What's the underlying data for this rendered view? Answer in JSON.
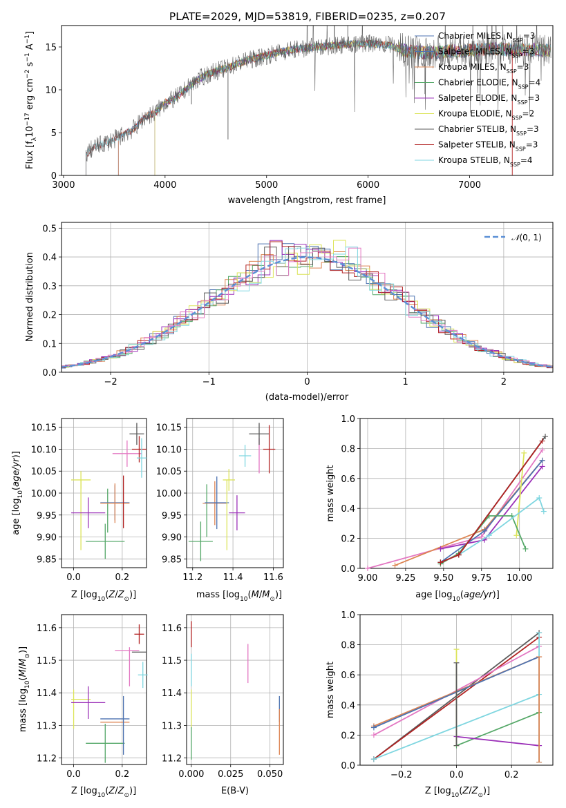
{
  "figure": {
    "title": "PLATE=2029, MJD=53819, FIBERID=0235, z=0.207"
  },
  "colors": {
    "chabrier_miles": "#4c72b0",
    "salpeter_miles": "#4c72b0",
    "kroupa_miles": "#dd8452",
    "chabrier_elodie": "#55a868",
    "salpeter_elodie": "#9b30b8",
    "kroupa_elodie": "#dce45a",
    "chabrier_stelib": "#5a5a5a",
    "salpeter_stelib": "#b22222",
    "kroupa_stelib": "#7fd6e0",
    "pink": "#e377c2",
    "normal": "#5b8fd6",
    "grid": "#b0b0b0"
  },
  "chart_data": [
    {
      "id": "spectrum",
      "type": "line",
      "title": "PLATE=2029, MJD=53819, FIBERID=0235, z=0.207",
      "xlabel": "wavelength [Angstrom, rest frame]",
      "ylabel": "Flux [f_λ 10^-17 erg cm^-2 s^-1 A^-1]",
      "xlim": [
        2980,
        7820
      ],
      "ylim": [
        0,
        17.5
      ],
      "xticks": [
        "3000",
        "4000",
        "5000",
        "6000",
        "7000"
      ],
      "yticks": [
        "0",
        "5",
        "10",
        "15"
      ],
      "grid": false,
      "legend_position": "upper right",
      "legend": [
        "Chabrier MILES, N_SSP=3",
        "Salpeter MILES, N_SSP=3",
        "Kroupa MILES, N_SSP=3",
        "Chabrier ELODIE, N_SSP=4",
        "Salpeter ELODIE, N_SSP=3",
        "Kroupa ELODIE, N_SSP=2",
        "Chabrier STELIB, N_SSP=3",
        "Salpeter STELIB, N_SSP=3",
        "Kroupa STELIB, N_SSP=4"
      ],
      "continuum": {
        "x": [
          3220,
          3300,
          3500,
          3700,
          3800,
          3900,
          4000,
          4100,
          4200,
          4300,
          4400,
          4500,
          4600,
          4700,
          4800,
          5000,
          5200,
          5400,
          5600,
          5800,
          6000,
          6200,
          6400,
          6600,
          6800,
          7000,
          7200,
          7400,
          7800
        ],
        "y": [
          2.5,
          3.3,
          4.2,
          5.5,
          6.8,
          7.3,
          8.5,
          9.0,
          10.0,
          11.0,
          11.7,
          12.2,
          12.5,
          13.0,
          13.4,
          14.0,
          14.6,
          14.9,
          15.1,
          15.3,
          15.4,
          15.2,
          14.5,
          14.3,
          14.5,
          14.6,
          14.8,
          14.7,
          14.6
        ]
      },
      "model_starts": {
        "Chabrier MILES": 3540,
        "Salpeter MILES": 3540,
        "Kroupa MILES": 3540,
        "Kroupa ELODIE": 3900,
        "Salpeter STELIB": 3220,
        "Kroupa STELIB": 3220
      },
      "sharp_features": [
        {
          "x": 4620,
          "y": 4.2
        },
        {
          "x": 4260,
          "y": 8.3
        },
        {
          "x": 5800,
          "y": 17.5
        },
        {
          "x": 6560,
          "y": 9.5
        },
        {
          "x": 6760,
          "y": 17.5
        }
      ]
    },
    {
      "id": "residuals",
      "type": "line",
      "xlabel": "(data-model)/error",
      "ylabel": "Normed distribution",
      "xlim": [
        -2.5,
        2.5
      ],
      "ylim": [
        0,
        0.52
      ],
      "xticks": [
        "−2",
        "−1",
        "0",
        "1",
        "2"
      ],
      "yticks": [
        "0.0",
        "0.1",
        "0.2",
        "0.3",
        "0.4",
        "0.5"
      ],
      "grid": true,
      "legend_position": "upper right",
      "legend": [
        "N(0,1)"
      ],
      "bin_width": 0.1,
      "histogram_center": [
        0.02,
        0.03,
        0.04,
        0.05,
        0.07,
        0.09,
        0.11,
        0.14,
        0.17,
        0.19,
        0.22,
        0.25,
        0.27,
        0.3,
        0.33,
        0.35,
        0.37,
        0.38,
        0.4,
        0.41,
        0.41,
        0.4,
        0.39,
        0.38,
        0.36,
        0.34,
        0.31,
        0.28,
        0.26,
        0.23,
        0.2,
        0.17,
        0.14,
        0.12,
        0.1,
        0.08,
        0.06,
        0.05,
        0.04,
        0.03,
        0.02
      ]
    },
    {
      "id": "age_vs_Z",
      "type": "scatter",
      "xlabel": "Z [log10(Z/Z⊙)]",
      "ylabel": "age [log10(age/yr)]",
      "xlim": [
        -0.05,
        0.3
      ],
      "ylim": [
        9.83,
        10.17
      ],
      "xticks": [
        "0.0",
        "0.2"
      ],
      "yticks": [
        "9.85",
        "9.90",
        "9.95",
        "10.00",
        "10.05",
        "10.10",
        "10.15"
      ],
      "grid": true,
      "points": [
        {
          "x": 0.03,
          "xerr": 0.04,
          "y": 10.03,
          "yerr": 0.02,
          "color": "kroupa_elodie"
        },
        {
          "x": 0.03,
          "xerr": 0.0,
          "y": 9.95,
          "yerr": 0.08,
          "color": "kroupa_elodie"
        },
        {
          "x": 0.06,
          "xerr": 0.07,
          "y": 9.955,
          "yerr": 0.035,
          "color": "salpeter_elodie"
        },
        {
          "x": 0.13,
          "xerr": 0.08,
          "y": 9.89,
          "yerr": 0.04,
          "color": "chabrier_elodie"
        },
        {
          "x": 0.14,
          "xerr": 0.0,
          "y": 9.96,
          "yerr": 0.05,
          "color": "chabrier_elodie"
        },
        {
          "x": 0.17,
          "xerr": 0.06,
          "y": 9.978,
          "yerr": 0.04,
          "color": "chabrier_miles"
        },
        {
          "x": 0.17,
          "xerr": 0.06,
          "y": 9.977,
          "yerr": 0.045,
          "color": "kroupa_miles"
        },
        {
          "x": 0.205,
          "xerr": 0.0,
          "y": 9.98,
          "yerr": 0.06,
          "color": "salpeter_stelib"
        },
        {
          "x": 0.22,
          "xerr": 0.06,
          "y": 10.09,
          "yerr": 0.03,
          "color": "pink"
        },
        {
          "x": 0.27,
          "xerr": 0.03,
          "y": 10.1,
          "yerr": 0.03,
          "color": "salpeter_stelib"
        },
        {
          "x": 0.26,
          "xerr": 0.03,
          "y": 10.135,
          "yerr": 0.025,
          "color": "chabrier_stelib"
        },
        {
          "x": 0.28,
          "xerr": 0.02,
          "y": 10.08,
          "yerr": 0.045,
          "color": "kroupa_stelib"
        }
      ]
    },
    {
      "id": "age_vs_mass",
      "type": "scatter",
      "xlabel": "mass [log10(M/M⊙)]",
      "ylabel": "",
      "xlim": [
        11.17,
        11.65
      ],
      "ylim": [
        9.83,
        10.17
      ],
      "xticks": [
        "11.2",
        "11.4",
        "11.6"
      ],
      "yticks": [
        "9.85",
        "9.90",
        "9.95",
        "10.00",
        "10.05",
        "10.10",
        "10.15"
      ],
      "grid": true,
      "points": [
        {
          "x": 11.24,
          "xerr": 0.06,
          "y": 9.89,
          "yerr": 0.045,
          "color": "chabrier_elodie"
        },
        {
          "x": 11.27,
          "xerr": 0.0,
          "y": 9.96,
          "yerr": 0.06,
          "color": "chabrier_elodie"
        },
        {
          "x": 11.31,
          "xerr": 0.06,
          "y": 9.977,
          "yerr": 0.05,
          "color": "kroupa_miles"
        },
        {
          "x": 11.32,
          "xerr": 0.06,
          "y": 9.978,
          "yerr": 0.06,
          "color": "chabrier_miles"
        },
        {
          "x": 11.37,
          "xerr": 0.0,
          "y": 9.95,
          "yerr": 0.08,
          "color": "kroupa_elodie"
        },
        {
          "x": 11.38,
          "xerr": 0.03,
          "y": 10.03,
          "yerr": 0.025,
          "color": "kroupa_elodie"
        },
        {
          "x": 11.42,
          "xerr": 0.04,
          "y": 9.955,
          "yerr": 0.04,
          "color": "salpeter_elodie"
        },
        {
          "x": 11.46,
          "xerr": 0.03,
          "y": 10.085,
          "yerr": 0.025,
          "color": "kroupa_stelib"
        },
        {
          "x": 11.53,
          "xerr": 0.0,
          "y": 10.085,
          "yerr": 0.04,
          "color": "pink"
        },
        {
          "x": 11.53,
          "xerr": 0.05,
          "y": 10.135,
          "yerr": 0.025,
          "color": "chabrier_stelib"
        },
        {
          "x": 11.58,
          "xerr": 0.03,
          "y": 10.1,
          "yerr": 0.055,
          "color": "salpeter_stelib"
        }
      ]
    },
    {
      "id": "mass_weight_vs_age",
      "type": "line",
      "xlabel": "age [log10(age/yr)]",
      "ylabel": "mass weight",
      "xlim": [
        8.95,
        10.22
      ],
      "ylim": [
        0.0,
        1.0
      ],
      "xticks": [
        "9.00",
        "9.25",
        "9.50",
        "9.75",
        "10.00"
      ],
      "yticks": [
        "0.0",
        "0.2",
        "0.4",
        "0.6",
        "0.8",
        "1.0"
      ],
      "grid": true,
      "series": [
        {
          "color": "pink",
          "x": [
            9.0,
            9.75,
            10.15
          ],
          "y": [
            0.0,
            0.21,
            0.79
          ]
        },
        {
          "color": "kroupa_miles",
          "x": [
            9.18,
            9.77,
            10.15
          ],
          "y": [
            0.02,
            0.26,
            0.72
          ]
        },
        {
          "color": "chabrier_miles",
          "x": [
            9.48,
            9.77,
            10.15
          ],
          "y": [
            0.04,
            0.25,
            0.72
          ]
        },
        {
          "color": "salpeter_elodie",
          "x": [
            9.48,
            9.77,
            10.15
          ],
          "y": [
            0.13,
            0.19,
            0.68
          ]
        },
        {
          "color": "kroupa_elodie",
          "x": [
            9.98,
            10.03
          ],
          "y": [
            0.22,
            0.77
          ]
        },
        {
          "color": "chabrier_elodie",
          "x": [
            9.48,
            9.6,
            9.8,
            9.95,
            10.04
          ],
          "y": [
            0.03,
            0.1,
            0.35,
            0.35,
            0.13
          ]
        },
        {
          "color": "kroupa_stelib",
          "x": [
            9.48,
            9.6,
            9.8,
            10.13,
            10.16
          ],
          "y": [
            0.04,
            0.09,
            0.22,
            0.47,
            0.38
          ]
        },
        {
          "color": "chabrier_stelib",
          "x": [
            9.48,
            9.6,
            10.17
          ],
          "y": [
            0.04,
            0.09,
            0.88
          ]
        },
        {
          "color": "salpeter_stelib",
          "x": [
            9.48,
            9.6,
            10.15
          ],
          "y": [
            0.04,
            0.09,
            0.85
          ]
        }
      ]
    },
    {
      "id": "mass_vs_Z",
      "type": "scatter",
      "xlabel": "Z [log10(Z/Z⊙)]",
      "ylabel": "mass [log10(M/M⊙)]",
      "xlim": [
        -0.05,
        0.3
      ],
      "ylim": [
        11.18,
        11.64
      ],
      "xticks": [
        "0.0",
        "0.2"
      ],
      "yticks": [
        "11.2",
        "11.3",
        "11.4",
        "11.5",
        "11.6"
      ],
      "grid": true,
      "points": [
        {
          "x": 0.03,
          "xerr": 0.04,
          "y": 11.38,
          "yerr": 0.0,
          "color": "kroupa_elodie"
        },
        {
          "x": 0.0,
          "xerr": 0.0,
          "y": 11.35,
          "yerr": 0.06,
          "color": "kroupa_elodie"
        },
        {
          "x": 0.06,
          "xerr": 0.07,
          "y": 11.37,
          "yerr": 0.05,
          "color": "salpeter_elodie"
        },
        {
          "x": 0.13,
          "xerr": 0.08,
          "y": 11.245,
          "yerr": 0.06,
          "color": "chabrier_elodie"
        },
        {
          "x": 0.17,
          "xerr": 0.06,
          "y": 11.32,
          "yerr": 0.0,
          "color": "chabrier_miles"
        },
        {
          "x": 0.17,
          "xerr": 0.06,
          "y": 11.31,
          "yerr": 0.0,
          "color": "kroupa_miles"
        },
        {
          "x": 0.205,
          "xerr": 0.0,
          "y": 11.3,
          "yerr": 0.09,
          "color": "chabrier_miles"
        },
        {
          "x": 0.22,
          "xerr": 0.05,
          "y": 11.53,
          "yerr": 0.0,
          "color": "pink"
        },
        {
          "x": 0.23,
          "xerr": 0.0,
          "y": 11.48,
          "yerr": 0.06,
          "color": "pink"
        },
        {
          "x": 0.27,
          "xerr": 0.02,
          "y": 11.58,
          "yerr": 0.03,
          "color": "salpeter_stelib"
        },
        {
          "x": 0.27,
          "xerr": 0.03,
          "y": 11.525,
          "yerr": 0.0,
          "color": "chabrier_stelib"
        },
        {
          "x": 0.285,
          "xerr": 0.02,
          "y": 11.455,
          "yerr": 0.04,
          "color": "kroupa_stelib"
        }
      ]
    },
    {
      "id": "mass_vs_ebv",
      "type": "scatter",
      "xlabel": "E(B-V)",
      "ylabel": "",
      "xlim": [
        -0.003,
        0.0585
      ],
      "ylim": [
        11.18,
        11.64
      ],
      "xticks": [
        "0.000",
        "0.025",
        "0.050"
      ],
      "yticks": [
        "11.2",
        "11.3",
        "11.4",
        "11.5",
        "11.6"
      ],
      "grid": true,
      "points": [
        {
          "x": 0.0,
          "xerr": 0.0,
          "y": 11.58,
          "yerr": 0.04,
          "color": "salpeter_stelib"
        },
        {
          "x": 0.0,
          "xerr": 0.0,
          "y": 11.47,
          "yerr": 0.05,
          "color": "kroupa_stelib"
        },
        {
          "x": 0.0,
          "xerr": 0.0,
          "y": 11.35,
          "yerr": 0.06,
          "color": "kroupa_elodie"
        },
        {
          "x": 0.0,
          "xerr": 0.0,
          "y": 11.245,
          "yerr": 0.05,
          "color": "chabrier_elodie"
        },
        {
          "x": 0.036,
          "xerr": 0.0,
          "y": 11.49,
          "yerr": 0.06,
          "color": "pink"
        },
        {
          "x": 0.056,
          "xerr": 0.0,
          "y": 11.35,
          "yerr": 0.04,
          "color": "chabrier_miles"
        },
        {
          "x": 0.056,
          "xerr": 0.0,
          "y": 11.28,
          "yerr": 0.07,
          "color": "kroupa_miles"
        }
      ]
    },
    {
      "id": "mass_weight_vs_Z",
      "type": "line",
      "xlabel": "Z [log10(Z/Z⊙)]",
      "ylabel": "mass weight",
      "xlim": [
        -0.35,
        0.35
      ],
      "ylim": [
        0.0,
        1.0
      ],
      "xticks": [
        "−0.2",
        "0.0",
        "0.2"
      ],
      "yticks": [
        "0.0",
        "0.2",
        "0.4",
        "0.6",
        "0.8",
        "1.0"
      ],
      "grid": true,
      "series": [
        {
          "color": "chabrier_stelib",
          "x": [
            -0.3,
            0.3
          ],
          "y": [
            0.04,
            0.88
          ]
        },
        {
          "color": "salpeter_stelib",
          "x": [
            -0.3,
            0.3
          ],
          "y": [
            0.04,
            0.85
          ]
        },
        {
          "color": "pink",
          "x": [
            -0.3,
            0.3
          ],
          "y": [
            0.2,
            0.79
          ]
        },
        {
          "color": "kroupa_miles",
          "x": [
            -0.3,
            0.3
          ],
          "y": [
            0.26,
            0.72
          ]
        },
        {
          "color": "chabrier_miles",
          "x": [
            -0.3,
            0.3
          ],
          "y": [
            0.25,
            0.72
          ]
        },
        {
          "color": "kroupa_stelib",
          "x": [
            -0.3,
            0.3
          ],
          "y": [
            0.04,
            0.47
          ]
        },
        {
          "color": "chabrier_elodie",
          "x": [
            0.0,
            0.3
          ],
          "y": [
            0.13,
            0.35
          ]
        },
        {
          "color": "salpeter_elodie",
          "x": [
            0.0,
            0.3
          ],
          "y": [
            0.19,
            0.13
          ]
        }
      ],
      "vertical_markers": [
        {
          "x": 0.0,
          "y": [
            0.13,
            0.77
          ],
          "color": "kroupa_elodie"
        },
        {
          "x": 0.0,
          "y": [
            0.13,
            0.68
          ],
          "color": "chabrier_stelib"
        },
        {
          "x": 0.3,
          "y": [
            0.02,
            0.88
          ],
          "color": "kroupa_stelib"
        },
        {
          "x": 0.3,
          "y": [
            0.02,
            0.72
          ],
          "color": "kroupa_miles"
        }
      ]
    }
  ]
}
